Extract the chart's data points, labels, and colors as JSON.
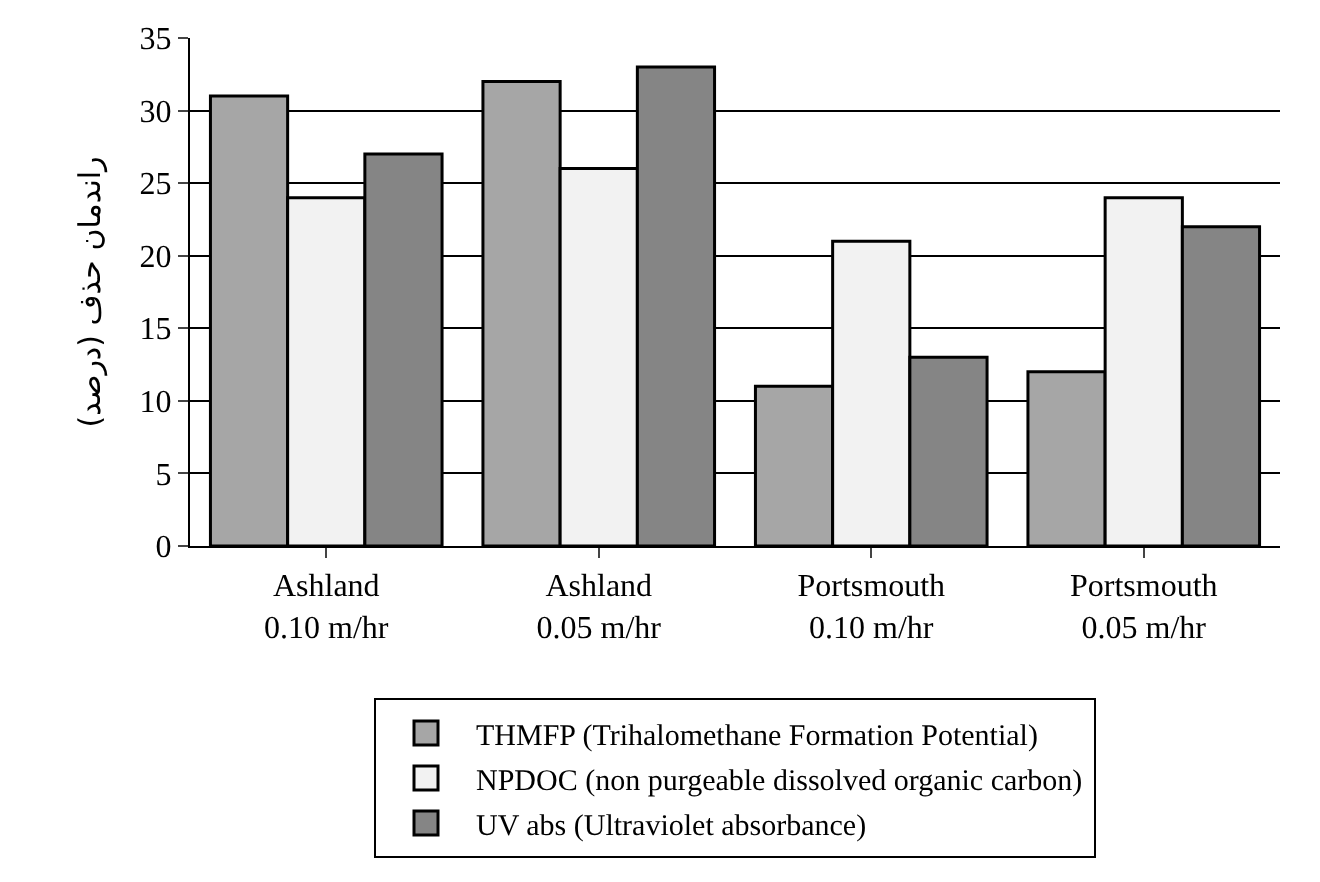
{
  "chart_data": {
    "type": "bar",
    "ylabel": "راندمان حذف (درصد)",
    "categories": [
      "Ashland\n0.10 m/hr",
      "Ashland\n0.05 m/hr",
      "Portsmouth\n0.10 m/hr",
      "Portsmouth\n0.05 m/hr"
    ],
    "series": [
      {
        "name": "THMFP (Trihalomethane Formation Potential)",
        "color": "#a6a6a6",
        "values": [
          31,
          32,
          11,
          12
        ]
      },
      {
        "name": "NPDOC (non purgeable dissolved organic carbon)",
        "color": "#f2f2f2",
        "values": [
          24,
          26,
          21,
          24
        ]
      },
      {
        "name": "UV abs (Ultraviolet absorbance)",
        "color": "#858585",
        "values": [
          27,
          33,
          13,
          22
        ]
      }
    ],
    "ylim": [
      0,
      35
    ],
    "yticks": [
      0,
      5,
      10,
      15,
      20,
      25,
      30,
      35
    ],
    "grid": "y",
    "legend": "bottom"
  }
}
